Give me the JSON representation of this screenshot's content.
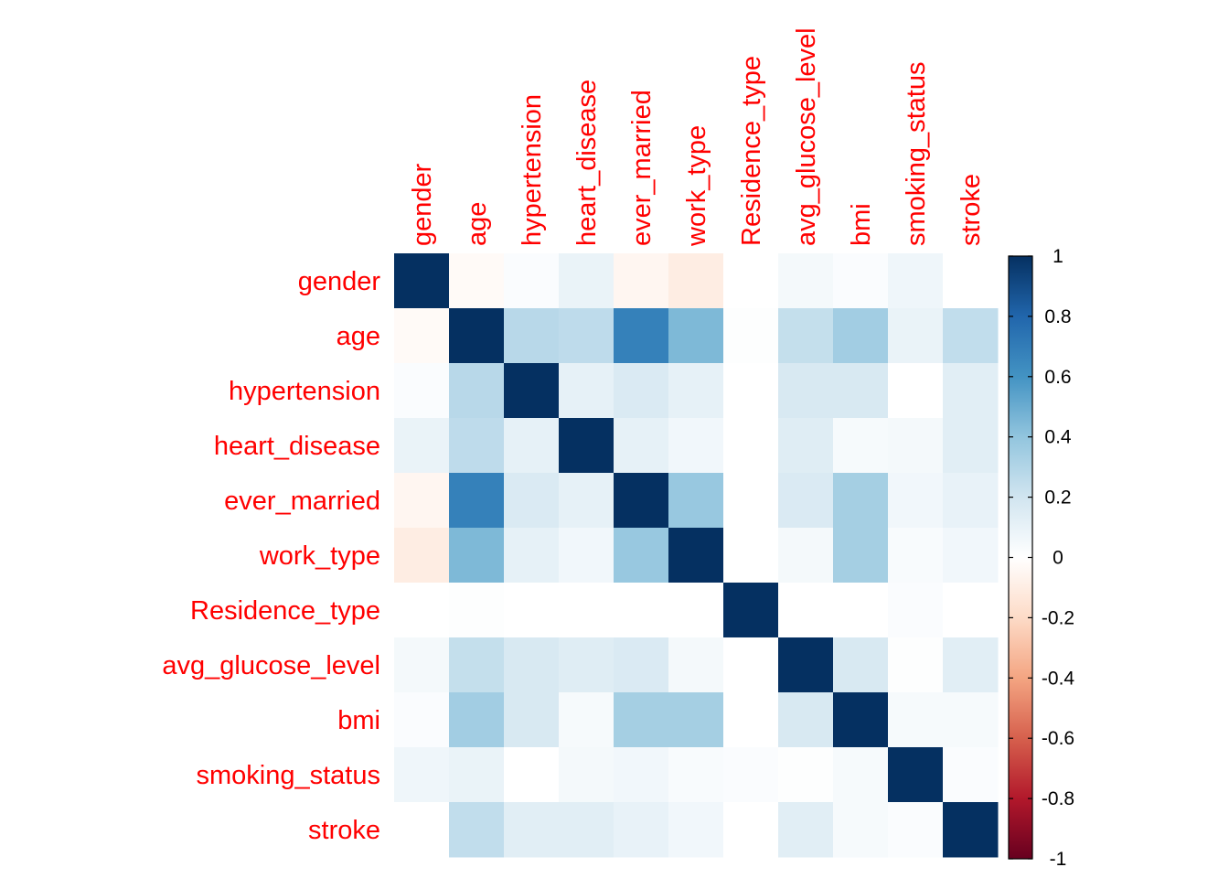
{
  "chart_data": {
    "type": "heatmap",
    "title": "",
    "variables": [
      "gender",
      "age",
      "hypertension",
      "heart_disease",
      "ever_married",
      "work_type",
      "Residence_type",
      "avg_glucose_level",
      "bmi",
      "smoking_status",
      "stroke"
    ],
    "values": [
      [
        1.0,
        -0.03,
        0.02,
        0.09,
        -0.05,
        -0.1,
        0.0,
        0.05,
        0.02,
        0.07,
        0.0
      ],
      [
        -0.03,
        1.0,
        0.28,
        0.26,
        0.68,
        0.45,
        0.01,
        0.24,
        0.35,
        0.09,
        0.25
      ],
      [
        0.02,
        0.28,
        1.0,
        0.11,
        0.16,
        0.11,
        0.0,
        0.17,
        0.17,
        0.0,
        0.13
      ],
      [
        0.09,
        0.26,
        0.11,
        1.0,
        0.11,
        0.06,
        0.0,
        0.14,
        0.04,
        0.05,
        0.13
      ],
      [
        -0.05,
        0.68,
        0.16,
        0.11,
        1.0,
        0.38,
        0.0,
        0.16,
        0.34,
        0.06,
        0.1
      ],
      [
        -0.1,
        0.45,
        0.11,
        0.06,
        0.38,
        1.0,
        0.0,
        0.05,
        0.34,
        0.03,
        0.06
      ],
      [
        0.0,
        0.01,
        0.0,
        0.0,
        0.0,
        0.0,
        1.0,
        0.0,
        0.0,
        0.02,
        0.0
      ],
      [
        0.05,
        0.24,
        0.17,
        0.14,
        0.16,
        0.05,
        0.0,
        1.0,
        0.17,
        0.01,
        0.13
      ],
      [
        0.02,
        0.35,
        0.17,
        0.04,
        0.34,
        0.34,
        0.0,
        0.17,
        1.0,
        0.04,
        0.04
      ],
      [
        0.07,
        0.09,
        0.0,
        0.05,
        0.06,
        0.03,
        0.02,
        0.01,
        0.04,
        1.0,
        0.02
      ],
      [
        0.0,
        0.25,
        0.13,
        0.13,
        0.1,
        0.06,
        0.0,
        0.13,
        0.04,
        0.02,
        1.0
      ]
    ],
    "color_scale": {
      "min": -1,
      "max": 1,
      "ticks": [
        "1",
        "0.8",
        "0.6",
        "0.4",
        "0.2",
        "0",
        "-0.2",
        "-0.4",
        "-0.6",
        "-0.8",
        "-1"
      ],
      "stops": [
        "#67001F",
        "#B2182B",
        "#D6604D",
        "#F4A582",
        "#FDDBC7",
        "#FFFFFF",
        "#D1E5F0",
        "#92C5DE",
        "#4393C3",
        "#2166AC",
        "#053061"
      ]
    },
    "label_color": "#ff0000",
    "grid": false,
    "legend_position": "right"
  }
}
